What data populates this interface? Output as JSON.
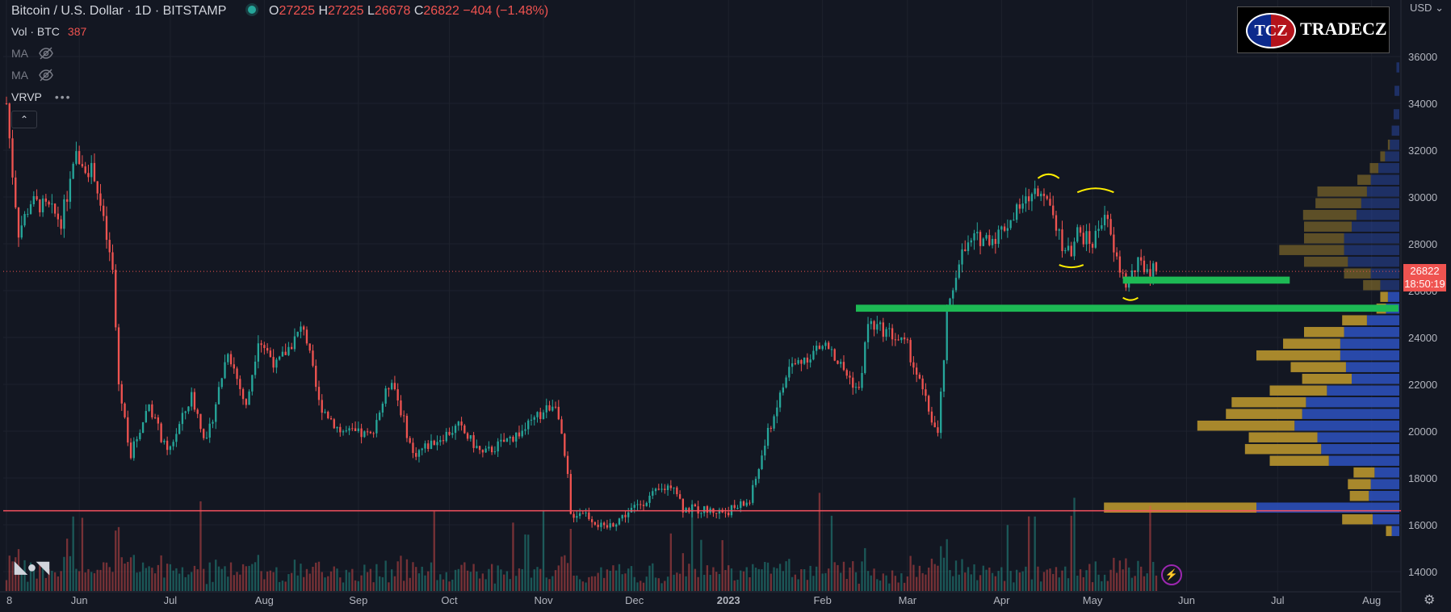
{
  "header": {
    "symbol": "Bitcoin / U.S. Dollar · 1D · BITSTAMP",
    "ohlc": [
      {
        "k": "O",
        "v": "27225"
      },
      {
        "k": "H",
        "v": "27225"
      },
      {
        "k": "L",
        "v": "26678"
      },
      {
        "k": "C",
        "v": "26822"
      }
    ],
    "change": "−404 (−1.48%)"
  },
  "volume": {
    "label": "Vol · BTC",
    "value": "387"
  },
  "indicators": {
    "ma1": "MA",
    "ma2": "MA",
    "vrvp": "VRVP",
    "more": "•••"
  },
  "currency": "USD",
  "current_price": {
    "value": "26822",
    "countdown": "18:50:19"
  },
  "logo": {
    "badge": "TCZ",
    "name": "TRADECZ"
  },
  "icons": [
    "tradingview-logo-icon",
    "eye-off-icon",
    "chevron-up-icon",
    "lightning-icon",
    "gear-icon"
  ],
  "colors": {
    "up": "#26a69a",
    "down": "#ef5350",
    "annotation": "#ffee00",
    "support": "#1db954",
    "level": "#f7525f",
    "vp_up": "#b9952e",
    "vp_down": "#2c4fb8"
  },
  "chart_data": {
    "type": "candlestick",
    "title": "Bitcoin / U.S. Dollar · 1D · BITSTAMP",
    "ylim": [
      13600,
      36800
    ],
    "y_ticks": [
      14000,
      16000,
      18000,
      20000,
      22000,
      24000,
      26000,
      28000,
      30000,
      32000,
      34000,
      36000
    ],
    "x_ticks": [
      "8",
      "Jun",
      "Jul",
      "Aug",
      "Sep",
      "Oct",
      "Nov",
      "Dec",
      "2023",
      "Feb",
      "Mar",
      "Apr",
      "May",
      "Jun",
      "Jul",
      "Aug"
    ],
    "price_path": [
      {
        "d": "2022-05-08",
        "v": 34000
      },
      {
        "d": "2022-05-10",
        "v": 31000
      },
      {
        "d": "2022-05-12",
        "v": 28500
      },
      {
        "d": "2022-05-16",
        "v": 29800
      },
      {
        "d": "2022-05-22",
        "v": 29500
      },
      {
        "d": "2022-05-26",
        "v": 29000
      },
      {
        "d": "2022-05-31",
        "v": 31700
      },
      {
        "d": "2022-06-06",
        "v": 31000
      },
      {
        "d": "2022-06-12",
        "v": 26800
      },
      {
        "d": "2022-06-14",
        "v": 22000
      },
      {
        "d": "2022-06-18",
        "v": 19000
      },
      {
        "d": "2022-06-24",
        "v": 21200
      },
      {
        "d": "2022-06-30",
        "v": 19000
      },
      {
        "d": "2022-07-08",
        "v": 21500
      },
      {
        "d": "2022-07-13",
        "v": 19500
      },
      {
        "d": "2022-07-20",
        "v": 23500
      },
      {
        "d": "2022-07-26",
        "v": 21000
      },
      {
        "d": "2022-07-30",
        "v": 24000
      },
      {
        "d": "2022-08-05",
        "v": 22800
      },
      {
        "d": "2022-08-14",
        "v": 24500
      },
      {
        "d": "2022-08-19",
        "v": 21200
      },
      {
        "d": "2022-08-26",
        "v": 20000
      },
      {
        "d": "2022-09-05",
        "v": 19800
      },
      {
        "d": "2022-09-12",
        "v": 22300
      },
      {
        "d": "2022-09-19",
        "v": 19000
      },
      {
        "d": "2022-10-04",
        "v": 20200
      },
      {
        "d": "2022-10-12",
        "v": 19000
      },
      {
        "d": "2022-10-25",
        "v": 20000
      },
      {
        "d": "2022-10-31",
        "v": 20700
      },
      {
        "d": "2022-11-05",
        "v": 21300
      },
      {
        "d": "2022-11-09",
        "v": 18000
      },
      {
        "d": "2022-11-10",
        "v": 16400
      },
      {
        "d": "2022-11-14",
        "v": 16600
      },
      {
        "d": "2022-11-21",
        "v": 15800
      },
      {
        "d": "2022-12-05",
        "v": 17100
      },
      {
        "d": "2022-12-14",
        "v": 17800
      },
      {
        "d": "2022-12-17",
        "v": 16700
      },
      {
        "d": "2022-12-31",
        "v": 16550
      },
      {
        "d": "2023-01-08",
        "v": 17000
      },
      {
        "d": "2023-01-14",
        "v": 19900
      },
      {
        "d": "2023-01-21",
        "v": 22700
      },
      {
        "d": "2023-02-02",
        "v": 23700
      },
      {
        "d": "2023-02-13",
        "v": 21700
      },
      {
        "d": "2023-02-16",
        "v": 24600
      },
      {
        "d": "2023-02-23",
        "v": 24200
      },
      {
        "d": "2023-03-01",
        "v": 23600
      },
      {
        "d": "2023-03-09",
        "v": 20500
      },
      {
        "d": "2023-03-11",
        "v": 19800
      },
      {
        "d": "2023-03-14",
        "v": 24800
      },
      {
        "d": "2023-03-18",
        "v": 27400
      },
      {
        "d": "2023-03-23",
        "v": 28200
      },
      {
        "d": "2023-03-30",
        "v": 28300
      },
      {
        "d": "2023-04-11",
        "v": 30100
      },
      {
        "d": "2023-04-16",
        "v": 30300
      },
      {
        "d": "2023-04-21",
        "v": 28000
      },
      {
        "d": "2023-04-24",
        "v": 27400
      },
      {
        "d": "2023-04-26",
        "v": 28500
      },
      {
        "d": "2023-05-01",
        "v": 28000
      },
      {
        "d": "2023-05-05",
        "v": 29400
      },
      {
        "d": "2023-05-08",
        "v": 27600
      },
      {
        "d": "2023-05-12",
        "v": 26300
      },
      {
        "d": "2023-05-16",
        "v": 27100
      },
      {
        "d": "2023-05-22",
        "v": 26822
      }
    ],
    "hlines": [
      16600
    ],
    "support_zones": [
      {
        "from": "2023-05-11",
        "to": "2023-07-05",
        "y": [
          26300,
          26600
        ]
      },
      {
        "from": "2023-02-12",
        "to": "2023-08-31",
        "y": [
          25100,
          25400
        ]
      }
    ],
    "annotations": [
      {
        "type": "arc",
        "from": "2023-04-13",
        "to": "2023-04-20",
        "y": 30800,
        "dir": "up"
      },
      {
        "type": "arc",
        "from": "2023-04-26",
        "to": "2023-05-08",
        "y": 30200,
        "dir": "up"
      },
      {
        "type": "arc",
        "from": "2023-04-20",
        "to": "2023-04-28",
        "y": 27100,
        "dir": "down"
      },
      {
        "type": "arc",
        "from": "2023-05-11",
        "to": "2023-05-16",
        "y": 25700,
        "dir": "down"
      }
    ],
    "volume_profile": [
      {
        "y": 35500,
        "up": 0,
        "down": 3
      },
      {
        "y": 34500,
        "up": 0,
        "down": 5
      },
      {
        "y": 33500,
        "up": 0,
        "down": 6
      },
      {
        "y": 32800,
        "up": 0,
        "down": 8
      },
      {
        "y": 32200,
        "up": 2,
        "down": 10
      },
      {
        "y": 31700,
        "up": 5,
        "down": 15
      },
      {
        "y": 31200,
        "up": 9,
        "down": 22
      },
      {
        "y": 30700,
        "up": 14,
        "down": 30
      },
      {
        "y": 30200,
        "up": 52,
        "down": 34
      },
      {
        "y": 29700,
        "up": 48,
        "down": 40
      },
      {
        "y": 29200,
        "up": 56,
        "down": 45
      },
      {
        "y": 28700,
        "up": 50,
        "down": 50
      },
      {
        "y": 28200,
        "up": 42,
        "down": 58
      },
      {
        "y": 27700,
        "up": 68,
        "down": 58
      },
      {
        "y": 27200,
        "up": 46,
        "down": 54
      },
      {
        "y": 26700,
        "up": 28,
        "down": 30
      },
      {
        "y": 26200,
        "up": 18,
        "down": 20
      },
      {
        "y": 25700,
        "up": 8,
        "down": 12
      },
      {
        "y": 25200,
        "up": 10,
        "down": 14
      },
      {
        "y": 24700,
        "up": 26,
        "down": 34
      },
      {
        "y": 24200,
        "up": 42,
        "down": 58
      },
      {
        "y": 23700,
        "up": 60,
        "down": 62
      },
      {
        "y": 23200,
        "up": 88,
        "down": 62
      },
      {
        "y": 22700,
        "up": 58,
        "down": 56
      },
      {
        "y": 22200,
        "up": 52,
        "down": 50
      },
      {
        "y": 21700,
        "up": 60,
        "down": 76
      },
      {
        "y": 21200,
        "up": 78,
        "down": 98
      },
      {
        "y": 20700,
        "up": 80,
        "down": 102
      },
      {
        "y": 20200,
        "up": 102,
        "down": 110
      },
      {
        "y": 19700,
        "up": 72,
        "down": 86
      },
      {
        "y": 19200,
        "up": 80,
        "down": 82
      },
      {
        "y": 18700,
        "up": 62,
        "down": 74
      },
      {
        "y": 18200,
        "up": 22,
        "down": 26
      },
      {
        "y": 17700,
        "up": 24,
        "down": 30
      },
      {
        "y": 17200,
        "up": 20,
        "down": 32
      },
      {
        "y": 16700,
        "up": 160,
        "down": 150
      },
      {
        "y": 16200,
        "up": 32,
        "down": 28
      },
      {
        "y": 15700,
        "up": 6,
        "down": 8
      }
    ]
  }
}
